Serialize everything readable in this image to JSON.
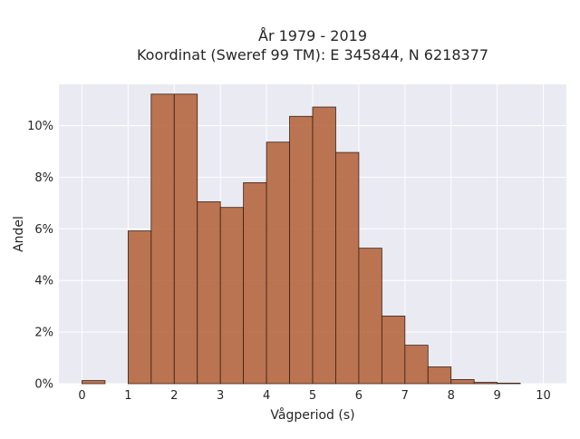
{
  "chart_data": {
    "type": "bar",
    "title_line1": "År 1979 - 2019",
    "title_line2": "Koordinat (Sweref 99 TM): E 345844, N 6218377",
    "xlabel": "Vågperiod (s)",
    "ylabel": "Andel",
    "xlim": [
      -0.5,
      10.5
    ],
    "ylim": [
      0,
      11.6
    ],
    "x_ticks": [
      0,
      1,
      2,
      3,
      4,
      5,
      6,
      7,
      8,
      9,
      10
    ],
    "y_ticks": [
      0,
      2,
      4,
      6,
      8,
      10
    ],
    "y_tick_suffix": "%",
    "bin_width": 0.5,
    "bins": [
      {
        "start": 0.0,
        "value": 0.12
      },
      {
        "start": 1.0,
        "value": 5.92
      },
      {
        "start": 1.5,
        "value": 11.22
      },
      {
        "start": 2.0,
        "value": 11.22
      },
      {
        "start": 2.5,
        "value": 7.05
      },
      {
        "start": 3.0,
        "value": 6.83
      },
      {
        "start": 3.5,
        "value": 7.79
      },
      {
        "start": 4.0,
        "value": 9.36
      },
      {
        "start": 4.5,
        "value": 10.36
      },
      {
        "start": 5.0,
        "value": 10.72
      },
      {
        "start": 5.5,
        "value": 8.96
      },
      {
        "start": 6.0,
        "value": 5.25
      },
      {
        "start": 6.5,
        "value": 2.62
      },
      {
        "start": 7.0,
        "value": 1.49
      },
      {
        "start": 7.5,
        "value": 0.65
      },
      {
        "start": 8.0,
        "value": 0.16
      },
      {
        "start": 8.5,
        "value": 0.05
      },
      {
        "start": 9.0,
        "value": 0.02
      }
    ],
    "grid": true,
    "colors": {
      "bar_fill": "#B5673F",
      "bar_edge": "#3b2014",
      "plot_bg": "#EAEAF2",
      "grid": "#ffffff"
    }
  }
}
